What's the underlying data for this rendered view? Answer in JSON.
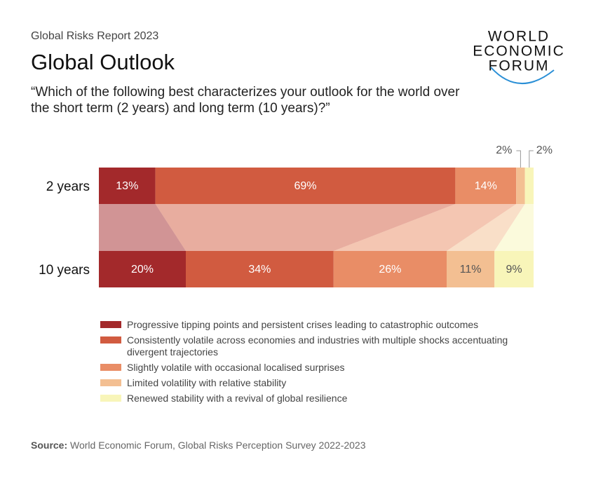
{
  "chart_data": {
    "type": "stacked-bar-100",
    "kicker": "Global Risks Report 2023",
    "title": "Global Outlook",
    "subtitle": "“Which of the following best characterizes your outlook for the world over the short term (2 years) and long term (10 years)?”",
    "categories": [
      "2 years",
      "10 years"
    ],
    "xlim": [
      0,
      100
    ],
    "series": [
      {
        "name": "Progressive tipping points and persistent crises leading to catastrophic outcomes",
        "color": "#a3292b",
        "values": [
          13,
          20
        ],
        "value_labels": [
          "13%",
          "20%"
        ]
      },
      {
        "name": "Consistently volatile across economies and industries with multiple shocks accentuating divergent trajectories",
        "color": "#d15b40",
        "values": [
          69,
          34
        ],
        "value_labels": [
          "69%",
          "34%"
        ]
      },
      {
        "name": "Slightly volatile with occasional localised surprises",
        "color": "#e98d66",
        "values": [
          14,
          26
        ],
        "value_labels": [
          "14%",
          "26%"
        ]
      },
      {
        "name": "Limited volatility with relative stability",
        "color": "#f3bf92",
        "values": [
          2,
          11
        ],
        "value_labels": [
          "2%",
          "11%"
        ]
      },
      {
        "name": "Renewed stability with a revival of global resilience",
        "color": "#f8f5b9",
        "values": [
          2,
          9
        ],
        "value_labels": [
          "2%",
          "9%"
        ]
      }
    ],
    "source_label": "Source:",
    "source": "World Economic Forum, Global Risks Perception Survey 2022-2023"
  },
  "logo": {
    "lines": [
      "WORLD",
      "ECONOMIC",
      "FORUM"
    ]
  }
}
